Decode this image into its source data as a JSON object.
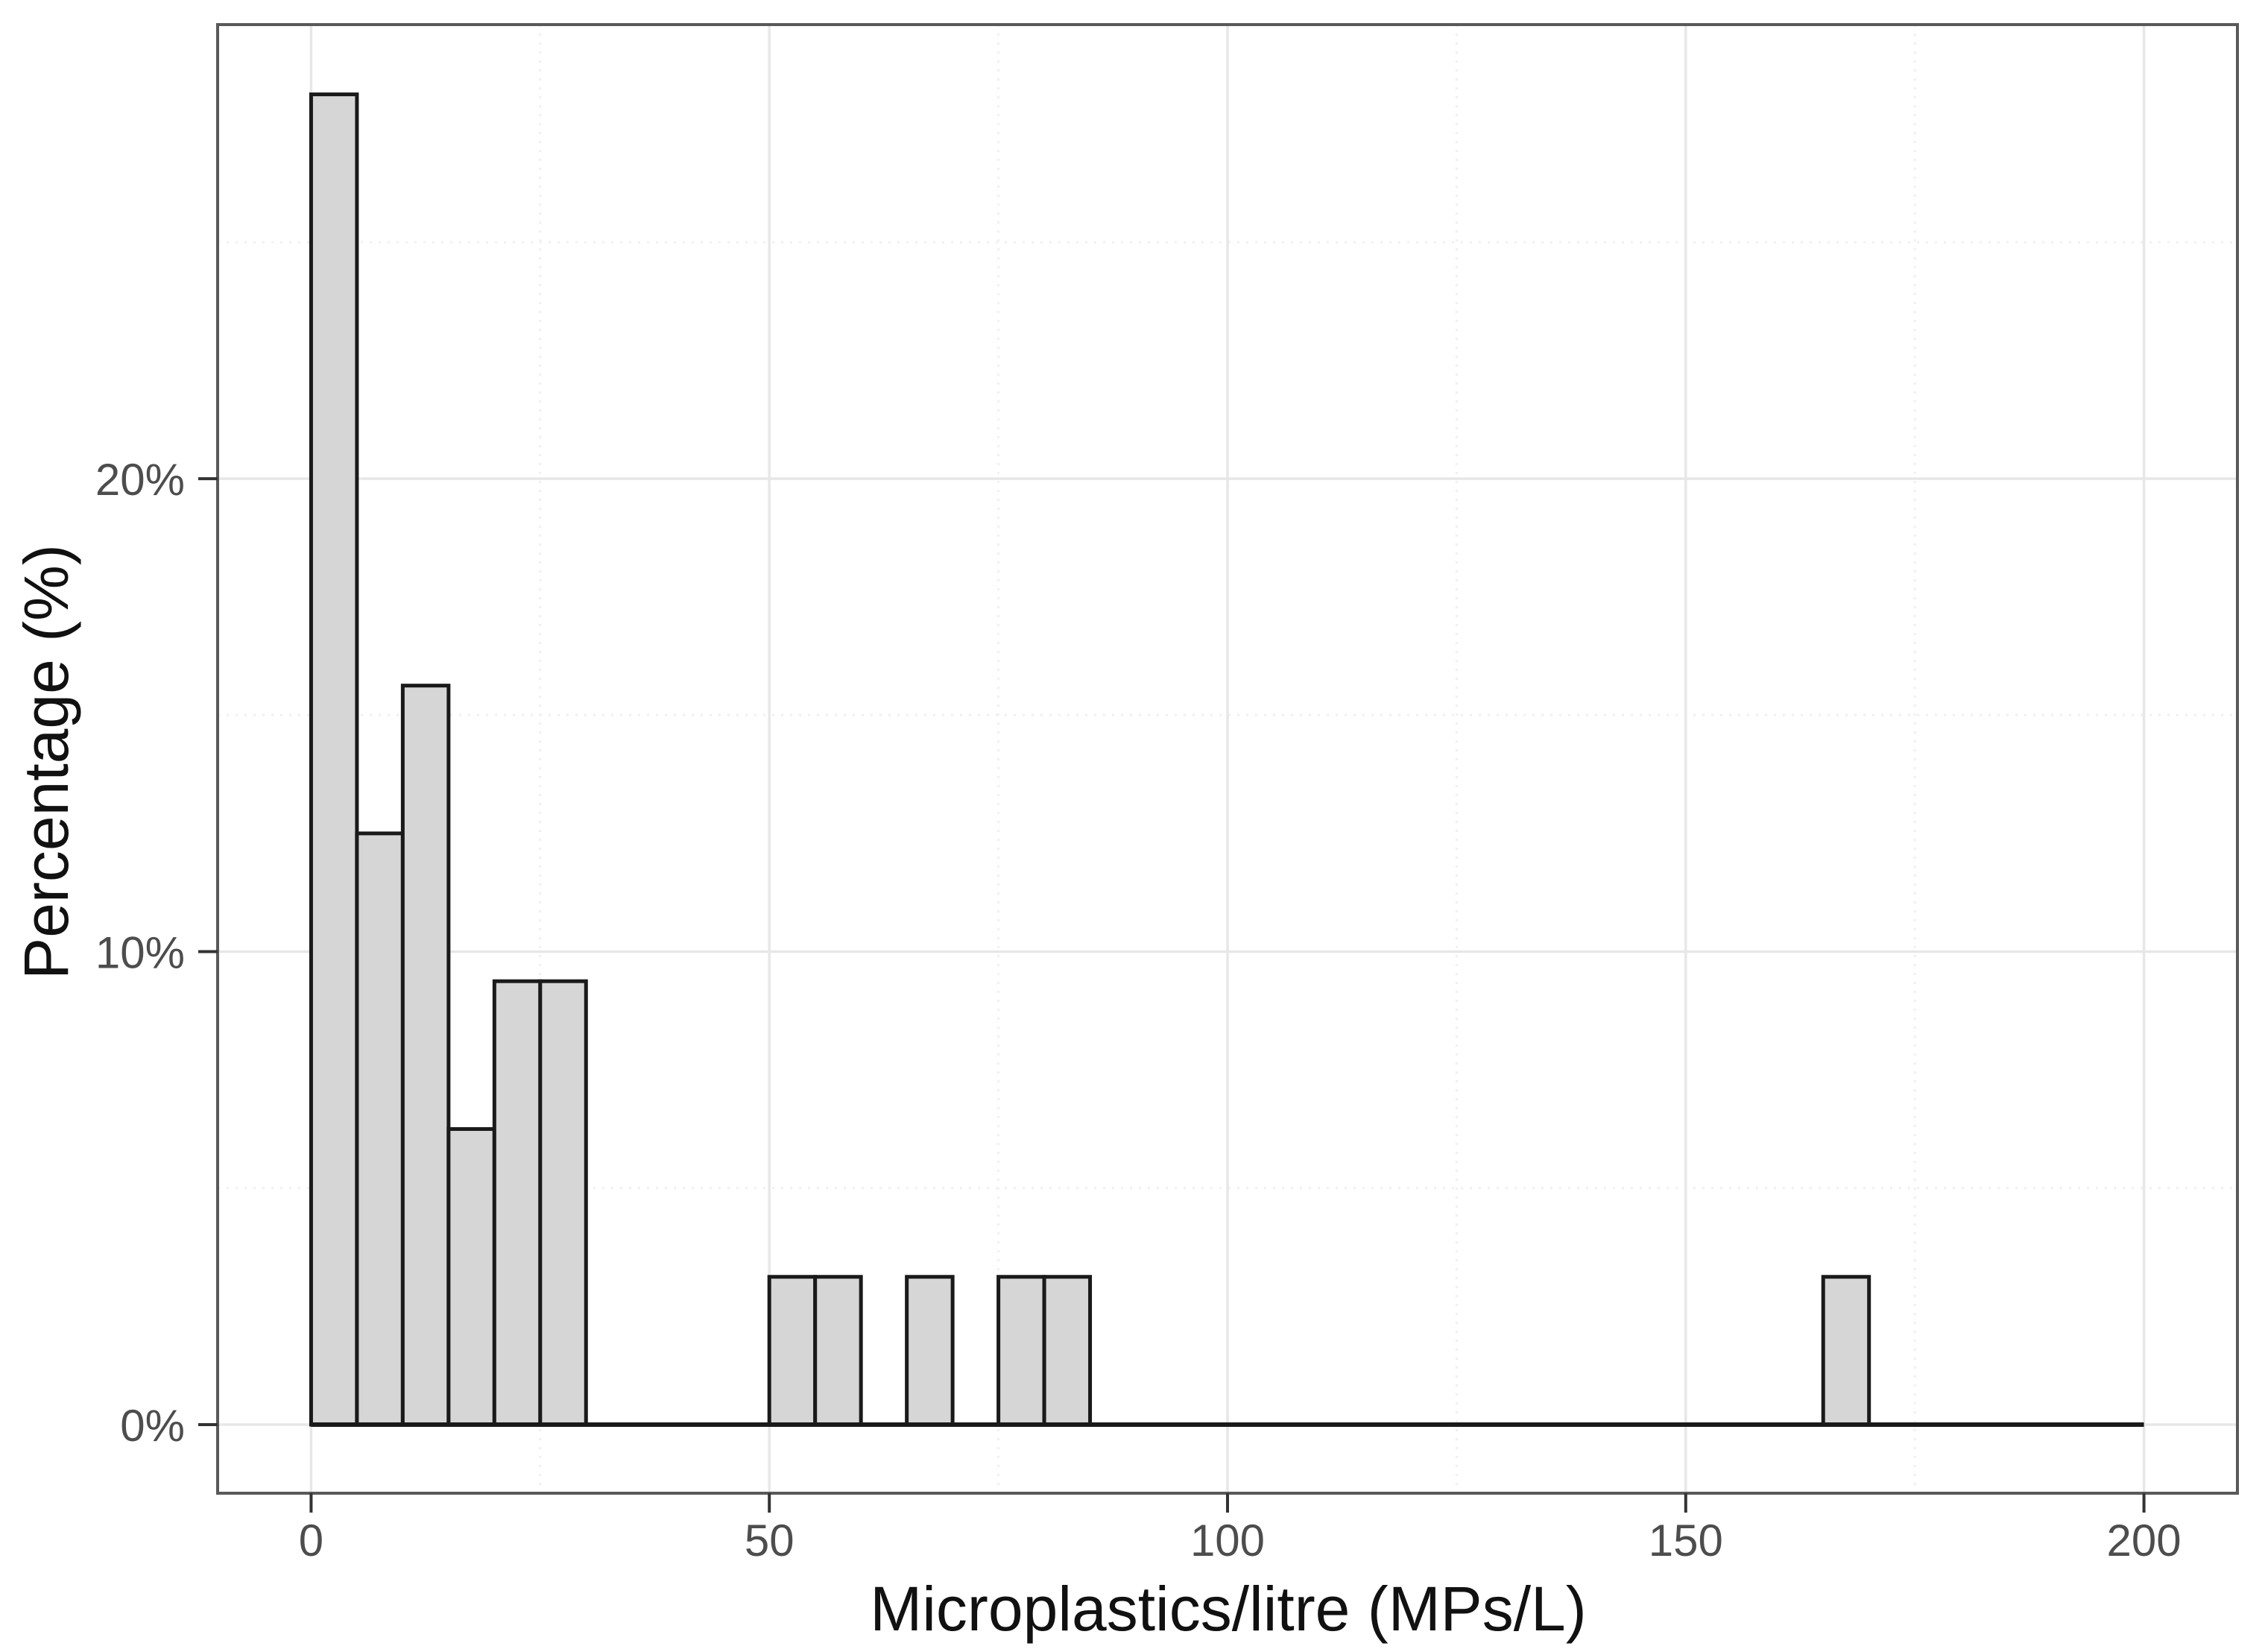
{
  "chart_data": {
    "type": "bar",
    "subtype": "histogram",
    "title": "",
    "xlabel": "Microplastics/litre (MPs/L)",
    "ylabel": "Percentage (%)",
    "bin_width": 5,
    "xlim": [
      -10.2,
      210.2
    ],
    "ylim": [
      -1.45,
      29.6
    ],
    "x_ticks": [
      {
        "value": 0,
        "label": "0"
      },
      {
        "value": 50,
        "label": "50"
      },
      {
        "value": 100,
        "label": "100"
      },
      {
        "value": 150,
        "label": "150"
      },
      {
        "value": 200,
        "label": "200"
      }
    ],
    "y_ticks": [
      {
        "value": 0,
        "label": "0%"
      },
      {
        "value": 10,
        "label": "10%"
      },
      {
        "value": 20,
        "label": "20%"
      }
    ],
    "x_minor_grid": [
      25,
      75,
      125,
      175
    ],
    "y_minor_grid": [
      5,
      15,
      25
    ],
    "bins": [
      {
        "from": 0,
        "to": 5,
        "percent": 28.125
      },
      {
        "from": 5,
        "to": 10,
        "percent": 12.5
      },
      {
        "from": 10,
        "to": 15,
        "percent": 15.625
      },
      {
        "from": 15,
        "to": 20,
        "percent": 6.25
      },
      {
        "from": 20,
        "to": 25,
        "percent": 9.375
      },
      {
        "from": 25,
        "to": 30,
        "percent": 9.375
      },
      {
        "from": 50,
        "to": 55,
        "percent": 3.125
      },
      {
        "from": 55,
        "to": 60,
        "percent": 3.125
      },
      {
        "from": 65,
        "to": 70,
        "percent": 3.125
      },
      {
        "from": 75,
        "to": 80,
        "percent": 3.125
      },
      {
        "from": 80,
        "to": 85,
        "percent": 3.125
      },
      {
        "from": 165,
        "to": 170,
        "percent": 3.125
      }
    ],
    "baseline": {
      "y": 0,
      "from": 0,
      "to": 200
    },
    "legend": false,
    "grid": true,
    "colors": {
      "bar_fill": "#d6d6d6",
      "bar_outline": "#1a1a1a",
      "grid_major": "#e7e7e7",
      "grid_minor": "#f0f0f0",
      "panel_border": "#595959",
      "tick_mark": "#333333",
      "tick_label": "#4d4d4d",
      "axis_title": "#111111",
      "background": "#ffffff"
    }
  }
}
